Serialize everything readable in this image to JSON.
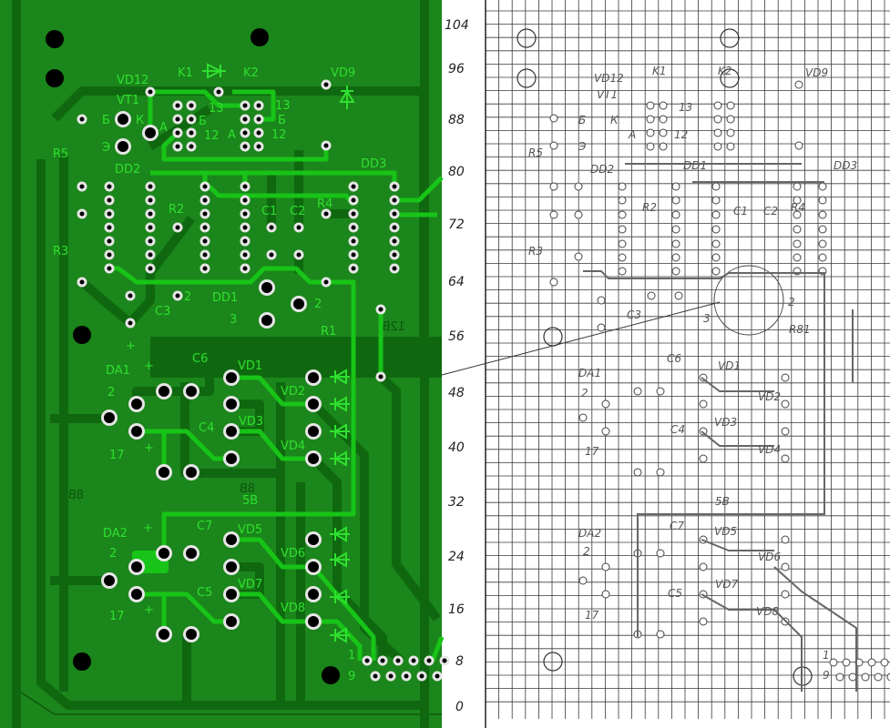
{
  "colors": {
    "board": "#1b861b",
    "copper_bottom": "#0f680f",
    "copper_top": "#17c417",
    "silkscreen": "#2fe02f",
    "pad_ring": "#e6e6e6",
    "grid": "#3a3a3a",
    "paper": "#ffffff"
  },
  "pcb": {
    "labels": {
      "k1": "K1",
      "k2": "K2",
      "vd12": "VD12",
      "vt1": "VT1",
      "vd9": "VD9",
      "b1": "Б",
      "k": "К",
      "e": "Э",
      "a1": "А",
      "b2": "Б",
      "n13a": "13",
      "n12a": "12",
      "a2": "А",
      "n13b": "13",
      "b3": "Б",
      "n12b": "12",
      "r5": "R5",
      "dd2": "DD2",
      "dd3": "DD3",
      "r2": "R2",
      "c1": "C1",
      "c2": "C2",
      "r4": "R4",
      "r3": "R3",
      "n2a": "2",
      "dd1": "DD1",
      "n2b": "2",
      "c3": "C3",
      "n3": "3",
      "r1": "R1",
      "da1": "DA1",
      "c6": "C6",
      "vd1": "VD1",
      "vd2": "VD2",
      "n2c": "2",
      "c4": "C4",
      "vd3": "VD3",
      "vd4": "VD4",
      "n17a": "17",
      "n5b": "5В",
      "da2": "DA2",
      "c7": "C7",
      "vd5": "VD5",
      "n2d": "2",
      "vd6": "VD6",
      "c5": "C5",
      "vd7": "VD7",
      "n17b": "17",
      "vd8": "VD8",
      "n1": "1",
      "n9": "9",
      "plus": "+"
    },
    "mirrored_labels": {
      "v12": "12В",
      "v8a": "8В",
      "v8b": "8В"
    }
  },
  "paper": {
    "y_axis_labels": [
      "104",
      "96",
      "88",
      "80",
      "72",
      "64",
      "56",
      "48",
      "40",
      "32",
      "24",
      "16",
      "8",
      "0"
    ],
    "labels": {
      "vd12": "VD12",
      "vt1": "VT1",
      "k1": "K1",
      "k2": "K2",
      "vd9": "VD9",
      "b": "Б",
      "e": "Э",
      "k": "К",
      "a": "А",
      "n13": "13",
      "n12": "12",
      "r5": "R5",
      "dd2": "DD2",
      "dd1": "DD1",
      "dd3": "DD3",
      "r2": "R2",
      "c1": "C1",
      "c2": "C2",
      "r4": "R4",
      "r3": "R3",
      "c3": "C3",
      "n2": "2",
      "n3": "3",
      "r81": "R81",
      "da1": "DA1",
      "c6": "C6",
      "vd1": "VD1",
      "vd2": "VD2",
      "n2b": "2",
      "c4": "C4",
      "vd3": "VD3",
      "vd4": "VD4",
      "n17": "17",
      "n5b": "5В",
      "da2": "DA2",
      "c7": "C7",
      "vd5": "VD5",
      "n2c": "2",
      "vd6": "VD6",
      "c5": "C5",
      "vd7": "VD7",
      "n17b": "17",
      "vd8": "VD8",
      "n1": "1",
      "n9": "9"
    }
  }
}
